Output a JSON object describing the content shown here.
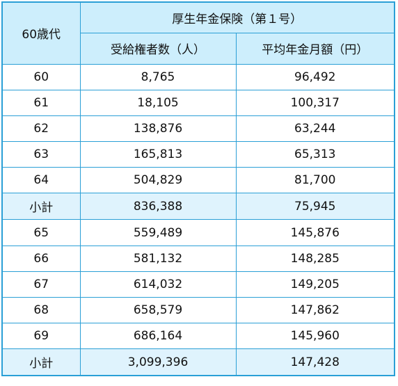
{
  "header": {
    "age_group": "60歳代",
    "group_title": "厚生年金保険（第１号）",
    "col_recipients": "受給権者数（人）",
    "col_average": "平均年金月額（円）"
  },
  "rows": [
    {
      "age": "60",
      "recipients": "8,765",
      "average": "96,492"
    },
    {
      "age": "61",
      "recipients": "18,105",
      "average": "100,317"
    },
    {
      "age": "62",
      "recipients": "138,876",
      "average": "63,244"
    },
    {
      "age": "63",
      "recipients": "165,813",
      "average": "65,313"
    },
    {
      "age": "64",
      "recipients": "504,829",
      "average": "81,700"
    },
    {
      "age": "小計",
      "recipients": "836,388",
      "average": "75,945"
    },
    {
      "age": "65",
      "recipients": "559,489",
      "average": "145,876"
    },
    {
      "age": "66",
      "recipients": "581,132",
      "average": "148,285"
    },
    {
      "age": "67",
      "recipients": "614,032",
      "average": "149,205"
    },
    {
      "age": "68",
      "recipients": "658,579",
      "average": "147,862"
    },
    {
      "age": "69",
      "recipients": "686,164",
      "average": "145,960"
    },
    {
      "age": "小計",
      "recipients": "3,099,396",
      "average": "147,428"
    }
  ],
  "colors": {
    "border": "#2a9fd6",
    "header_bg": "#cdeefc",
    "subtotal_bg": "#dff3fd"
  }
}
